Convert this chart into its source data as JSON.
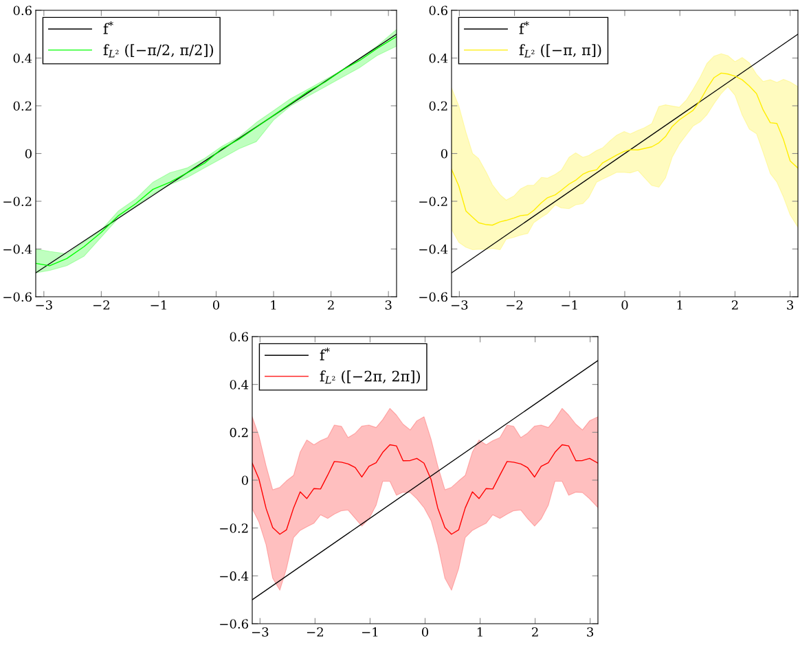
{
  "chart_data": [
    {
      "type": "line",
      "legend": "top left",
      "grid": false,
      "xlim": [
        -3.1416,
        3.1416
      ],
      "ylim": [
        -0.6,
        0.6
      ],
      "xticks": [
        {
          "value": -3,
          "label": "−3"
        },
        {
          "value": -2,
          "label": "−2"
        },
        {
          "value": -1,
          "label": "−1"
        },
        0,
        1,
        2,
        3
      ],
      "yticks": [
        {
          "value": -0.6,
          "label": "−0.6"
        },
        {
          "value": -0.4,
          "label": "−0.4"
        },
        {
          "value": -0.2,
          "label": "−0.2"
        },
        0,
        0.2,
        0.4,
        0.6
      ],
      "series": [
        {
          "name": "f$^{*}$",
          "color": "#000000",
          "x": [
            -3.1416,
            3.1416
          ],
          "values": [
            -0.5,
            0.5
          ]
        },
        {
          "name": "f$_{L²}$ ([−π/2, π/2])",
          "color": "#00ff00",
          "x": [
            -3.1416,
            -2.9,
            -2.6,
            -2.3,
            -2.0,
            -1.7,
            -1.4,
            -1.1,
            -0.8,
            -0.5,
            -0.2,
            0.1,
            0.4,
            0.7,
            1.0,
            1.3,
            1.6,
            1.9,
            2.2,
            2.5,
            2.8,
            3.1416
          ],
          "values": [
            -0.46,
            -0.47,
            -0.44,
            -0.39,
            -0.33,
            -0.26,
            -0.21,
            -0.15,
            -0.12,
            -0.08,
            -0.04,
            0.02,
            0.06,
            0.11,
            0.16,
            0.21,
            0.26,
            0.3,
            0.35,
            0.39,
            0.44,
            0.49
          ],
          "upper": [
            -0.4,
            -0.41,
            -0.42,
            -0.37,
            -0.32,
            -0.24,
            -0.19,
            -0.12,
            -0.08,
            -0.06,
            -0.02,
            0.03,
            0.07,
            0.13,
            0.18,
            0.23,
            0.27,
            0.31,
            0.35,
            0.4,
            0.45,
            0.52
          ],
          "lower": [
            -0.5,
            -0.49,
            -0.47,
            -0.43,
            -0.35,
            -0.27,
            -0.22,
            -0.17,
            -0.13,
            -0.1,
            -0.06,
            -0.02,
            0.02,
            0.05,
            0.14,
            0.2,
            0.24,
            0.28,
            0.32,
            0.36,
            0.41,
            0.45
          ]
        }
      ]
    },
    {
      "type": "line",
      "legend": "top left",
      "grid": false,
      "xlim": [
        -3.1416,
        3.1416
      ],
      "ylim": [
        -0.6,
        0.6
      ],
      "xticks": [
        {
          "value": -3,
          "label": "−3"
        },
        {
          "value": -2,
          "label": "−2"
        },
        {
          "value": -1,
          "label": "−1"
        },
        0,
        1,
        2,
        3
      ],
      "yticks": [
        {
          "value": -0.6,
          "label": "−0.6"
        },
        {
          "value": -0.4,
          "label": "−0.4"
        },
        {
          "value": -0.2,
          "label": "−0.2"
        },
        0,
        0.2,
        0.4,
        0.6
      ],
      "series": [
        {
          "name": "f$^{*}$",
          "color": "#000000",
          "x": [
            -3.1416,
            3.1416
          ],
          "values": [
            -0.5,
            0.5
          ]
        },
        {
          "name": "f$_{L²}$ ([−π, π])",
          "color": "#ffee00",
          "x": [
            -3.1416,
            -3.01,
            -2.88,
            -2.76,
            -2.65,
            -2.51,
            -2.4,
            -2.26,
            -2.15,
            -2.01,
            -1.89,
            -1.76,
            -1.65,
            -1.51,
            -1.4,
            -1.26,
            -1.15,
            -1.01,
            -0.89,
            -0.76,
            -0.65,
            -0.51,
            -0.4,
            -0.26,
            -0.15,
            -0.01,
            0.1,
            0.24,
            0.35,
            0.49,
            0.62,
            0.74,
            0.86,
            0.99,
            1.12,
            1.24,
            1.37,
            1.49,
            1.62,
            1.75,
            1.87,
            2.0,
            2.13,
            2.26,
            2.39,
            2.51,
            2.64,
            2.76,
            2.88,
            3.0,
            3.1416
          ],
          "values": [
            -0.066,
            -0.136,
            -0.241,
            -0.267,
            -0.29,
            -0.298,
            -0.3,
            -0.286,
            -0.28,
            -0.27,
            -0.26,
            -0.257,
            -0.238,
            -0.206,
            -0.185,
            -0.173,
            -0.154,
            -0.128,
            -0.112,
            -0.087,
            -0.075,
            -0.068,
            -0.039,
            -0.021,
            -0.007,
            0.009,
            0.016,
            0.015,
            0.021,
            0.028,
            0.045,
            0.071,
            0.113,
            0.141,
            0.162,
            0.181,
            0.223,
            0.272,
            0.318,
            0.337,
            0.333,
            0.324,
            0.309,
            0.283,
            0.251,
            0.183,
            0.129,
            0.126,
            0.058,
            -0.031,
            -0.061
          ],
          "upper": [
            0.275,
            0.2,
            0.089,
            0.0,
            -0.021,
            -0.079,
            -0.131,
            -0.173,
            -0.195,
            -0.178,
            -0.148,
            -0.133,
            -0.133,
            -0.1,
            -0.103,
            -0.087,
            -0.07,
            -0.016,
            0.003,
            -0.016,
            -0.008,
            0.013,
            0.024,
            0.055,
            0.076,
            0.092,
            0.082,
            0.097,
            0.107,
            0.125,
            0.197,
            0.204,
            0.199,
            0.194,
            0.225,
            0.269,
            0.321,
            0.377,
            0.408,
            0.418,
            0.41,
            0.385,
            0.402,
            0.38,
            0.332,
            0.302,
            0.309,
            0.298,
            0.311,
            0.3,
            0.28
          ],
          "lower": [
            -0.317,
            -0.372,
            -0.393,
            -0.403,
            -0.401,
            -0.401,
            -0.398,
            -0.403,
            -0.359,
            -0.351,
            -0.342,
            -0.335,
            -0.29,
            -0.267,
            -0.251,
            -0.215,
            -0.228,
            -0.231,
            -0.215,
            -0.21,
            -0.183,
            -0.12,
            -0.107,
            -0.092,
            -0.079,
            -0.079,
            -0.081,
            -0.071,
            -0.099,
            -0.134,
            -0.141,
            -0.102,
            -0.016,
            0.039,
            0.079,
            0.115,
            0.133,
            0.162,
            0.209,
            0.251,
            0.28,
            0.244,
            0.162,
            0.102,
            0.083,
            0.005,
            -0.084,
            -0.12,
            -0.183,
            -0.257,
            -0.309
          ]
        }
      ]
    },
    {
      "type": "line",
      "legend": "top left",
      "grid": false,
      "xlim": [
        -3.1416,
        3.1416
      ],
      "ylim": [
        -0.6,
        0.6
      ],
      "xticks": [
        {
          "value": -3,
          "label": "−3"
        },
        {
          "value": -2,
          "label": "−2"
        },
        {
          "value": -1,
          "label": "−1"
        },
        0,
        1,
        2,
        3
      ],
      "yticks": [
        {
          "value": -0.6,
          "label": "−0.6"
        },
        {
          "value": -0.4,
          "label": "−0.4"
        },
        {
          "value": -0.2,
          "label": "−0.2"
        },
        0,
        0.2,
        0.4,
        0.6
      ],
      "series": [
        {
          "name": "f$^{*}$",
          "color": "#000000",
          "x": [
            -3.1416,
            3.1416
          ],
          "values": [
            -0.5,
            0.5
          ]
        },
        {
          "name": "f$_{L²}$ ([−2π, 2π])",
          "color": "#ff0000",
          "x": [
            -3.1416,
            -3.02,
            -2.89,
            -2.77,
            -2.64,
            -2.52,
            -2.39,
            -2.27,
            -2.15,
            -2.02,
            -1.9,
            -1.77,
            -1.65,
            -1.52,
            -1.4,
            -1.27,
            -1.15,
            -1.02,
            -0.89,
            -0.77,
            -0.64,
            -0.52,
            -0.4,
            -0.27,
            -0.15,
            -0.02,
            0.11,
            0.23,
            0.36,
            0.48,
            0.61,
            0.73,
            0.86,
            0.98,
            1.11,
            1.23,
            1.36,
            1.49,
            1.61,
            1.74,
            1.86,
            1.99,
            2.11,
            2.24,
            2.36,
            2.49,
            2.61,
            2.74,
            2.86,
            2.99,
            3.1416
          ],
          "values": [
            0.071,
            0.005,
            -0.118,
            -0.198,
            -0.226,
            -0.208,
            -0.116,
            -0.049,
            -0.077,
            -0.035,
            -0.037,
            0.021,
            0.078,
            0.075,
            0.068,
            0.053,
            0.013,
            0.058,
            0.073,
            0.116,
            0.148,
            0.143,
            0.081,
            0.082,
            0.091,
            0.071,
            0.002,
            -0.116,
            -0.198,
            -0.226,
            -0.208,
            -0.116,
            -0.049,
            -0.077,
            -0.035,
            -0.037,
            0.021,
            0.078,
            0.075,
            0.068,
            0.053,
            0.013,
            0.058,
            0.073,
            0.116,
            0.148,
            0.143,
            0.081,
            0.082,
            0.091,
            0.071
          ],
          "upper": [
            0.265,
            0.185,
            0.06,
            -0.04,
            -0.03,
            -0.003,
            0.02,
            0.118,
            0.168,
            0.148,
            0.165,
            0.178,
            0.23,
            0.225,
            0.178,
            0.196,
            0.226,
            0.23,
            0.22,
            0.253,
            0.3,
            0.272,
            0.234,
            0.21,
            0.248,
            0.265,
            0.17,
            0.06,
            -0.04,
            -0.03,
            -0.003,
            0.02,
            0.118,
            0.168,
            0.148,
            0.165,
            0.178,
            0.23,
            0.225,
            0.178,
            0.196,
            0.226,
            0.23,
            0.22,
            0.253,
            0.3,
            0.272,
            0.234,
            0.21,
            0.248,
            0.265
          ],
          "lower": [
            -0.12,
            -0.175,
            -0.27,
            -0.41,
            -0.46,
            -0.37,
            -0.24,
            -0.21,
            -0.195,
            -0.18,
            -0.145,
            -0.16,
            -0.142,
            -0.128,
            -0.125,
            -0.16,
            -0.192,
            -0.162,
            -0.105,
            -0.005,
            -0.005,
            -0.063,
            -0.05,
            -0.052,
            -0.078,
            -0.115,
            -0.17,
            -0.27,
            -0.41,
            -0.46,
            -0.37,
            -0.24,
            -0.21,
            -0.195,
            -0.18,
            -0.145,
            -0.16,
            -0.142,
            -0.128,
            -0.125,
            -0.16,
            -0.192,
            -0.162,
            -0.105,
            -0.005,
            -0.005,
            -0.063,
            -0.05,
            -0.052,
            -0.078,
            -0.115
          ]
        }
      ]
    }
  ]
}
